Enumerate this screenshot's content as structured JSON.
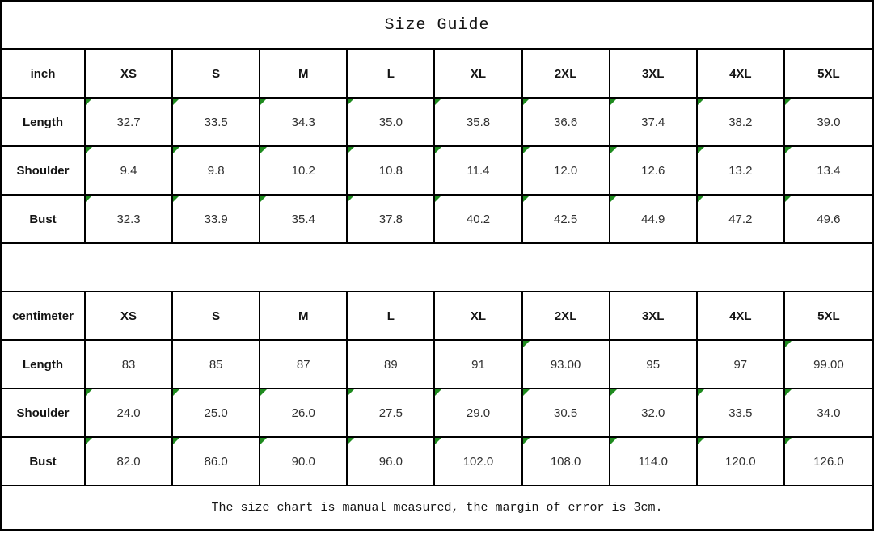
{
  "title": "Size Guide",
  "footer_note": "The size chart is manual measured, the margin of error is 3cm.",
  "colors": {
    "border": "#000000",
    "marker_green": "#1f8b1f",
    "header_text": "#141414",
    "value_text": "#303030"
  },
  "sizes": [
    "XS",
    "S",
    "M",
    "L",
    "XL",
    "2XL",
    "3XL",
    "4XL",
    "5XL"
  ],
  "tables": [
    {
      "unit": "inch",
      "rows": [
        {
          "label": "Length",
          "values": [
            "32.7",
            "33.5",
            "34.3",
            "35.0",
            "35.8",
            "36.6",
            "37.4",
            "38.2",
            "39.0"
          ],
          "markers": [
            1,
            1,
            1,
            1,
            1,
            1,
            1,
            1,
            1
          ]
        },
        {
          "label": "Shoulder",
          "values": [
            "9.4",
            "9.8",
            "10.2",
            "10.8",
            "11.4",
            "12.0",
            "12.6",
            "13.2",
            "13.4"
          ],
          "markers": [
            1,
            1,
            1,
            1,
            1,
            1,
            1,
            1,
            1
          ]
        },
        {
          "label": "Bust",
          "values": [
            "32.3",
            "33.9",
            "35.4",
            "37.8",
            "40.2",
            "42.5",
            "44.9",
            "47.2",
            "49.6"
          ],
          "markers": [
            1,
            1,
            1,
            1,
            1,
            1,
            1,
            1,
            1
          ]
        }
      ]
    },
    {
      "unit": "centimeter",
      "rows": [
        {
          "label": "Length",
          "values": [
            "83",
            "85",
            "87",
            "89",
            "91",
            "93.00",
            "95",
            "97",
            "99.00"
          ],
          "markers": [
            0,
            0,
            0,
            0,
            0,
            1,
            0,
            0,
            1
          ]
        },
        {
          "label": "Shoulder",
          "values": [
            "24.0",
            "25.0",
            "26.0",
            "27.5",
            "29.0",
            "30.5",
            "32.0",
            "33.5",
            "34.0"
          ],
          "markers": [
            1,
            1,
            1,
            1,
            1,
            1,
            1,
            1,
            1
          ]
        },
        {
          "label": "Bust",
          "values": [
            "82.0",
            "86.0",
            "90.0",
            "96.0",
            "102.0",
            "108.0",
            "114.0",
            "120.0",
            "126.0"
          ],
          "markers": [
            1,
            1,
            1,
            1,
            1,
            1,
            1,
            1,
            1
          ]
        }
      ]
    }
  ]
}
